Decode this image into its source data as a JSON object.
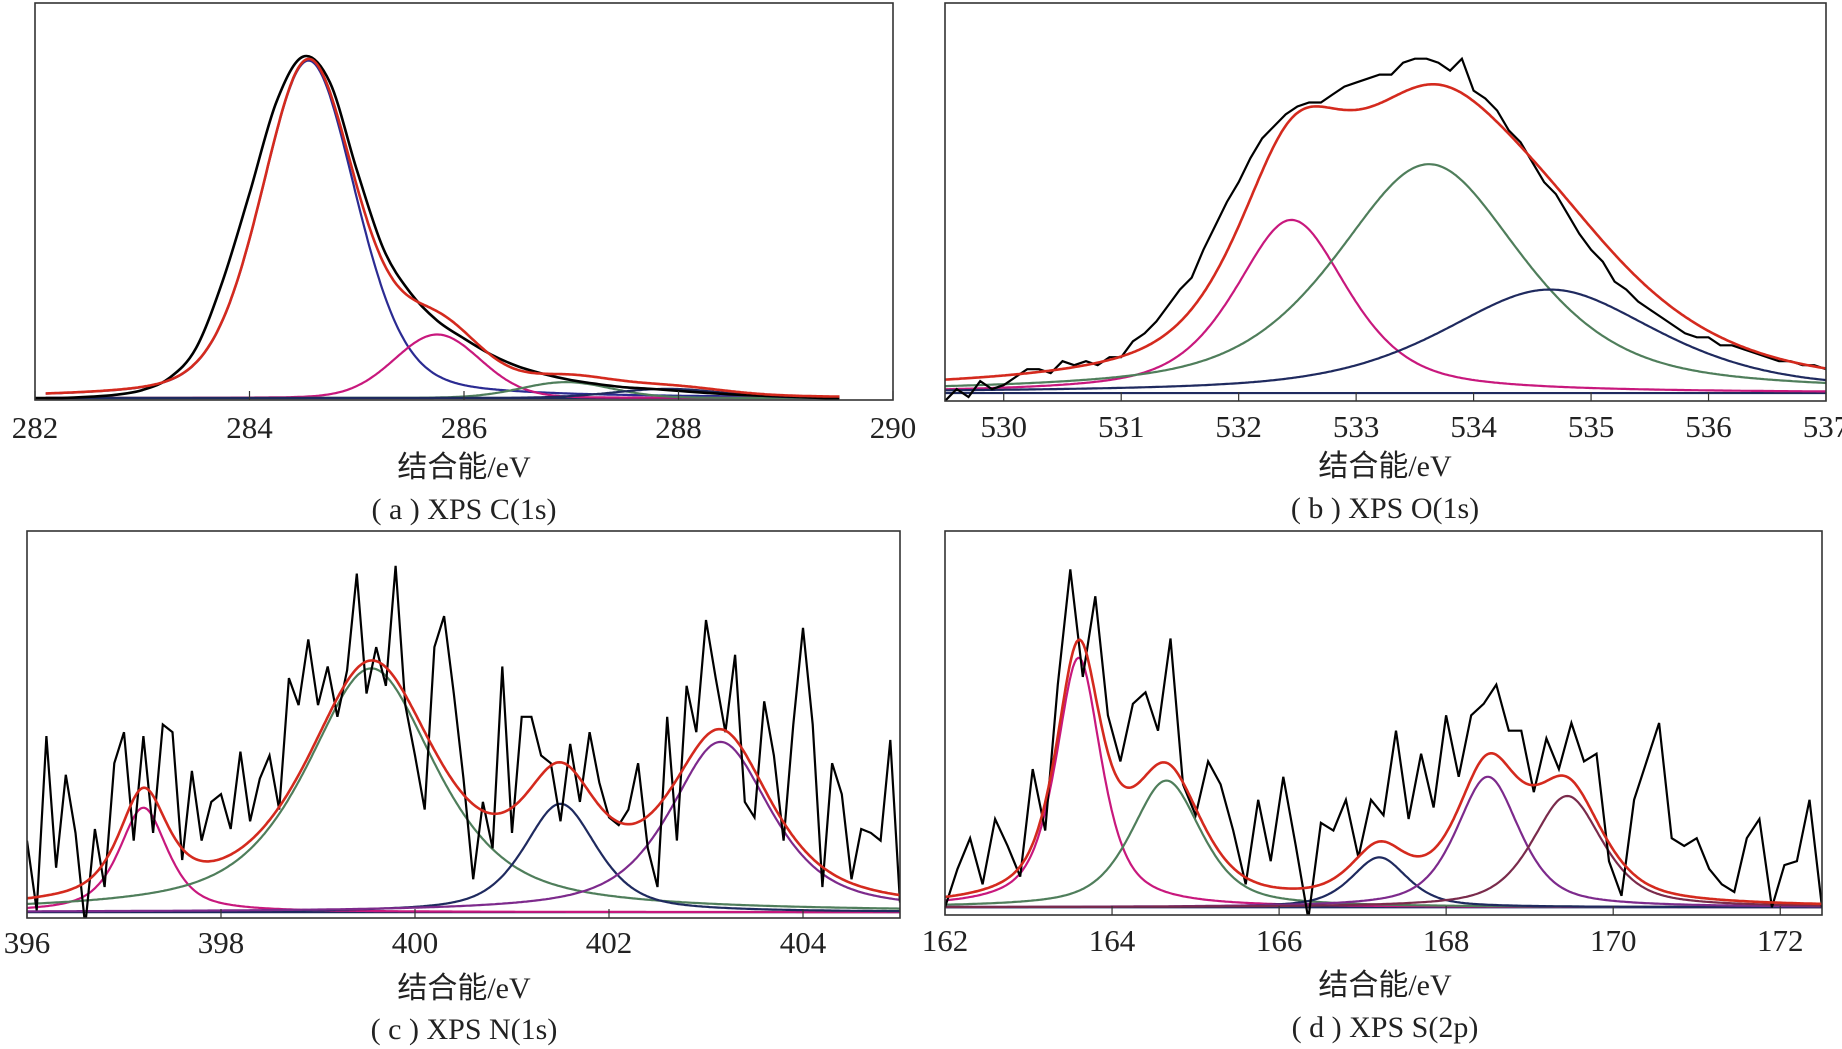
{
  "colors": {
    "experimental": "#000000",
    "envelope": "#d42a1e",
    "blue": "#2b2b92",
    "magenta": "#c8187d",
    "green": "#4f7e5b",
    "navy": "#1f2a5f",
    "purple": "#7d2a8c",
    "maroon": "#7a2b4c",
    "frame": "#333333"
  },
  "chart_data": [
    {
      "id": "a",
      "type": "line",
      "caption": "( a ) XPS C(1s)",
      "xlabel": "结合能/eV",
      "ylabel": "",
      "xlim": [
        282,
        290
      ],
      "ylim": [
        0,
        100
      ],
      "xticks": [
        282,
        284,
        286,
        288,
        290
      ],
      "grid": false,
      "baseline": 0.5,
      "data_range": [
        282.1,
        289.5
      ],
      "smooth_experimental": true,
      "experimental": {
        "x_start": 282.0,
        "x_step": 0.25,
        "y": [
          0.5,
          0.5,
          0.8,
          1.3,
          2.5,
          5.5,
          13,
          30,
          52,
          75,
          86.5,
          80,
          58,
          38,
          27,
          20,
          15.5,
          11.5,
          8.5,
          6.5,
          5,
          4,
          3.2,
          2.8,
          2.3,
          1.8,
          1.4,
          1.1,
          0.9,
          0.6,
          0.3
        ]
      },
      "components": [
        {
          "center": 284.55,
          "height": 85,
          "fwhm": 1.05,
          "lorentz_fraction": 0.3,
          "color": "blue"
        },
        {
          "center": 285.75,
          "height": 16,
          "fwhm": 0.95,
          "lorentz_fraction": 0.1,
          "color": "magenta"
        },
        {
          "center": 286.95,
          "height": 4,
          "fwhm": 1.0,
          "lorentz_fraction": 0.1,
          "color": "green"
        },
        {
          "center": 287.9,
          "height": 2.3,
          "fwhm": 1.2,
          "lorentz_fraction": 0.1,
          "color": "navy"
        }
      ]
    },
    {
      "id": "b",
      "type": "line",
      "caption": "( b ) XPS O(1s)",
      "xlabel": "结合能/eV",
      "ylabel": "",
      "xlim": [
        529.5,
        537
      ],
      "ylim": [
        0,
        100
      ],
      "xticks": [
        530,
        531,
        532,
        533,
        534,
        535,
        536,
        537
      ],
      "grid": false,
      "baseline": 2,
      "data_range": [
        529.5,
        537
      ],
      "smooth_experimental": false,
      "experimental": {
        "x_start": 529.5,
        "x_step": 0.1,
        "y": [
          0,
          3,
          1,
          5,
          3,
          4,
          6,
          8,
          8,
          7,
          10,
          9,
          10,
          9,
          11,
          11,
          15,
          17,
          20,
          24,
          28,
          31,
          38,
          44,
          50,
          55,
          61,
          66,
          69,
          72,
          74,
          75,
          75,
          77,
          79,
          80,
          81,
          82,
          82,
          85,
          86,
          86,
          85,
          83,
          86,
          78,
          76,
          73,
          68,
          65,
          60,
          55,
          52,
          47,
          42,
          38,
          35,
          30,
          28,
          25,
          23,
          21,
          19,
          17,
          16,
          16,
          14,
          14,
          13,
          12,
          11,
          10,
          10,
          9,
          9,
          8
        ]
      },
      "components": [
        {
          "center": 532.45,
          "height": 43.5,
          "fwhm": 1.15,
          "lorentz_fraction": 0.6,
          "color": "magenta"
        },
        {
          "center": 533.62,
          "height": 57.5,
          "fwhm": 1.9,
          "lorentz_fraction": 0.6,
          "color": "green"
        },
        {
          "center": 534.65,
          "height": 26,
          "fwhm": 2.2,
          "lorentz_fraction": 0.6,
          "color": "navy"
        }
      ]
    },
    {
      "id": "c",
      "type": "line",
      "caption": "( c ) XPS N(1s)",
      "xlabel": "结合能/eV",
      "ylabel": "",
      "xlim": [
        396,
        405
      ],
      "ylim": [
        0,
        100
      ],
      "xticks": [
        396,
        398,
        400,
        402,
        404
      ],
      "grid": false,
      "baseline": 1.5,
      "data_range": [
        396,
        405
      ],
      "smooth_experimental": false,
      "experimental": {
        "x_start": 396.0,
        "x_step": 0.1,
        "y": [
          20,
          2,
          47,
          13,
          37,
          22,
          -2,
          23,
          8,
          40,
          48,
          20,
          47,
          22,
          50,
          48,
          15,
          38,
          20,
          30,
          32,
          23,
          43,
          25,
          36,
          42,
          28,
          62,
          55,
          72,
          55,
          65,
          52,
          64,
          89,
          58,
          70,
          60,
          91,
          55,
          42,
          28,
          70,
          78,
          58,
          36,
          10,
          30,
          18,
          65,
          22,
          52,
          52,
          42,
          40,
          25,
          45,
          30,
          48,
          35,
          26,
          24,
          28,
          40,
          18,
          8,
          52,
          20,
          60,
          48,
          77,
          62,
          48,
          68,
          30,
          26,
          56,
          42,
          20,
          50,
          75,
          50,
          8,
          40,
          32,
          10,
          23,
          22,
          20,
          46,
          4
        ]
      },
      "components": [
        {
          "center": 397.2,
          "height": 27,
          "fwhm": 0.6,
          "lorentz_fraction": 0.7,
          "color": "magenta"
        },
        {
          "center": 399.55,
          "height": 63,
          "fwhm": 1.6,
          "lorentz_fraction": 0.7,
          "color": "green"
        },
        {
          "center": 401.5,
          "height": 28,
          "fwhm": 0.9,
          "lorentz_fraction": 0.6,
          "color": "navy"
        },
        {
          "center": 403.15,
          "height": 44,
          "fwhm": 1.25,
          "lorentz_fraction": 0.7,
          "color": "purple"
        }
      ]
    },
    {
      "id": "d",
      "type": "line",
      "caption": "( d ) XPS S(2p)",
      "xlabel": "结合能/eV",
      "ylabel": "",
      "xlim": [
        162,
        172.5
      ],
      "ylim": [
        0,
        100
      ],
      "xticks": [
        162,
        164,
        166,
        168,
        170,
        172
      ],
      "grid": false,
      "baseline": 2,
      "data_range": [
        162,
        172.5
      ],
      "smooth_experimental": false,
      "experimental": {
        "x_start": 162.0,
        "x_step": 0.15,
        "y": [
          2,
          12,
          20,
          8,
          25,
          18,
          10,
          38,
          22,
          60,
          90,
          62,
          83,
          52,
          40,
          55,
          58,
          48,
          72,
          34,
          26,
          40,
          34,
          22,
          8,
          30,
          14,
          36,
          18,
          -1,
          24,
          22,
          30,
          15,
          30,
          26,
          48,
          25,
          42,
          28,
          52,
          36,
          52,
          55,
          60,
          48,
          48,
          32,
          46,
          38,
          50,
          40,
          42,
          14,
          5,
          30,
          40,
          50,
          20,
          18,
          20,
          12,
          8,
          6,
          20,
          25,
          2,
          13,
          14,
          30,
          2
        ]
      },
      "components": [
        {
          "center": 163.6,
          "height": 65,
          "fwhm": 0.65,
          "lorentz_fraction": 0.7,
          "color": "magenta"
        },
        {
          "center": 164.65,
          "height": 33,
          "fwhm": 1.0,
          "lorentz_fraction": 0.6,
          "color": "green"
        },
        {
          "center": 167.2,
          "height": 13,
          "fwhm": 0.8,
          "lorentz_fraction": 0.6,
          "color": "navy"
        },
        {
          "center": 168.5,
          "height": 34,
          "fwhm": 0.9,
          "lorentz_fraction": 0.6,
          "color": "purple"
        },
        {
          "center": 169.45,
          "height": 29,
          "fwhm": 1.0,
          "lorentz_fraction": 0.6,
          "color": "maroon"
        }
      ]
    }
  ]
}
